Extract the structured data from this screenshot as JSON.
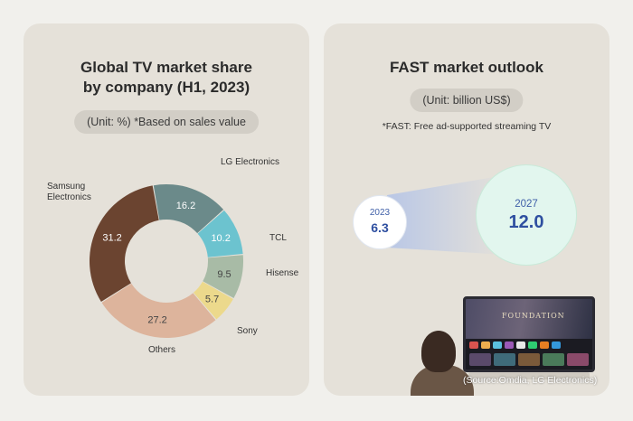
{
  "left": {
    "title_line1": "Global TV market share",
    "title_line2": "by company (H1, 2023)",
    "unit_note": "(Unit: %) *Based on sales value"
  },
  "right": {
    "title": "FAST market outlook",
    "unit_note": "(Unit: billion US$)",
    "footnote": "*FAST: Free ad-supported streaming TV",
    "source": "(Source:Omdia, LG Electronics)",
    "tv_brand_text": "FOUNDATION"
  },
  "chart_data": [
    {
      "type": "pie",
      "title": "Global TV market share by company (H1, 2023)",
      "unit": "%",
      "slices": [
        {
          "label": "LG Electronics",
          "value": 16.2,
          "color": "#6b8a8a"
        },
        {
          "label": "TCL",
          "value": 10.2,
          "color": "#6cc3cf"
        },
        {
          "label": "Hisense",
          "value": 9.5,
          "color": "#a8bba6"
        },
        {
          "label": "Sony",
          "value": 5.7,
          "color": "#ecd98c"
        },
        {
          "label": "Others",
          "value": 27.2,
          "color": "#ddb49c"
        },
        {
          "label": "Samsung Electronics",
          "value": 31.2,
          "color": "#6b4430"
        }
      ]
    },
    {
      "type": "bar",
      "title": "FAST market outlook",
      "unit": "billion US$",
      "categories": [
        "2023",
        "2027"
      ],
      "values": [
        6.3,
        12.0
      ]
    }
  ]
}
